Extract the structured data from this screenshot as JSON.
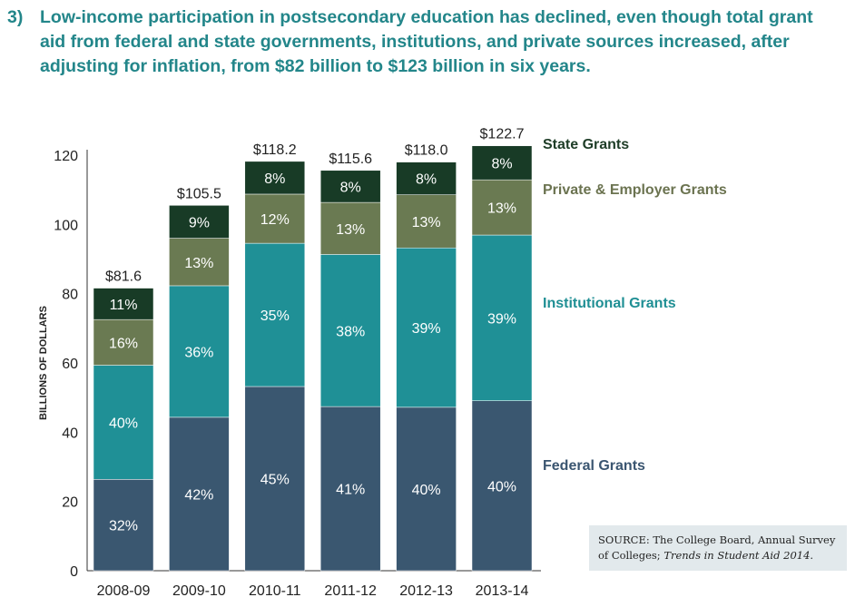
{
  "title": {
    "number": "3)",
    "lines": [
      "Low-income participation in postsecondary education has declined, even though total grant",
      "aid from federal and state governments, institutions, and private sources increased, after",
      "adjusting for inflation, from $82 billion to $123 billion in six years."
    ]
  },
  "source": {
    "prefix": "SOURCE: The College Board, Annual Survey of Colleges; ",
    "italic": "Trends in Student Aid 2014",
    "suffix": "."
  },
  "chart_data": {
    "type": "bar",
    "stacked": true,
    "ylabel": "BILLIONS OF DOLLARS",
    "ylim": [
      0,
      120
    ],
    "yticks": [
      0,
      20,
      40,
      60,
      80,
      100,
      120
    ],
    "grid": false,
    "legend": "right",
    "categories": [
      "2008-09",
      "2009-10",
      "2010-11",
      "2011-12",
      "2012-13",
      "2013-14"
    ],
    "totals": [
      81.6,
      105.5,
      118.2,
      115.6,
      118.0,
      122.7
    ],
    "total_labels": [
      "$81.6",
      "$105.5",
      "$118.2",
      "$115.6",
      "$118.0",
      "$122.7"
    ],
    "series": [
      {
        "name": "Federal Grants",
        "color": "#3a5770",
        "percent": [
          32,
          42,
          45,
          41,
          40,
          40
        ]
      },
      {
        "name": "Institutional Grants",
        "color": "#1f9096",
        "percent": [
          40,
          36,
          35,
          38,
          39,
          39
        ]
      },
      {
        "name": "Private & Employer Grants",
        "color": "#6a7a52",
        "percent": [
          16,
          13,
          12,
          13,
          13,
          13
        ]
      },
      {
        "name": "State Grants",
        "color": "#183b26",
        "percent": [
          11,
          9,
          8,
          8,
          8,
          8
        ]
      }
    ],
    "legend_colors": [
      "#3a5570",
      "#1f8f94",
      "#6b7350",
      "#1e3d27"
    ]
  }
}
